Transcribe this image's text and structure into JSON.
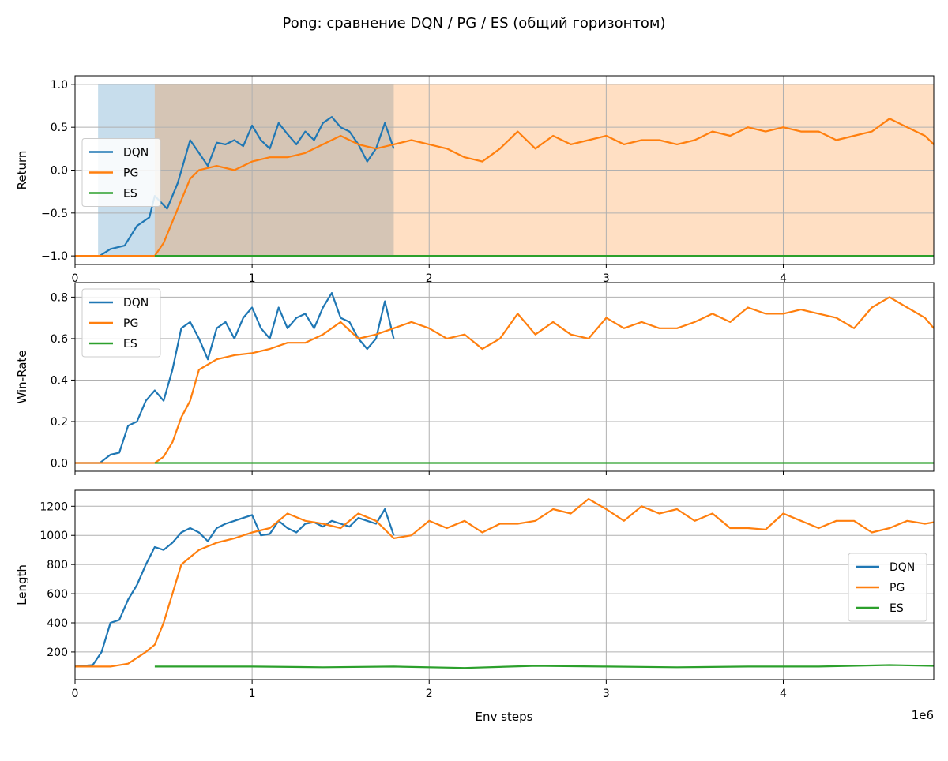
{
  "figure": {
    "title": "Pong: сравнение DQN / PG / ES (общий горизонтом)",
    "xlabel": "Env steps",
    "x_offset_label": "1e6"
  },
  "colors": {
    "DQN": "#1f77b4",
    "PG": "#ff7f0e",
    "ES": "#2ca02c",
    "grid": "#b0b0b0"
  },
  "legend_labels": [
    "DQN",
    "PG",
    "ES"
  ],
  "chart_data": [
    {
      "type": "line",
      "ylabel": "Return",
      "xlim": [
        0,
        4.85
      ],
      "ylim": [
        -1.1,
        1.1
      ],
      "yticks": [
        -1.0,
        -0.5,
        0.0,
        0.5,
        1.0
      ],
      "ytick_labels": [
        "−1.0",
        "−0.5",
        "0.0",
        "0.5",
        "1.0"
      ],
      "xticks": [
        0,
        1,
        2,
        3,
        4
      ],
      "xtick_labels": [
        "0",
        "1",
        "2",
        "3",
        "4"
      ],
      "grid": true,
      "legend_position": "center-left",
      "shaded_spans": [
        {
          "series": "DQN",
          "x": [
            0.13,
            0.45
          ],
          "y": [
            -1.0,
            1.0
          ]
        },
        {
          "series": "DQN",
          "x": [
            0.45,
            1.8
          ],
          "y": [
            -1.0,
            1.0
          ]
        },
        {
          "series": "PG",
          "x": [
            0.45,
            4.85
          ],
          "y": [
            -1.0,
            1.0
          ]
        }
      ],
      "series": [
        {
          "name": "DQN",
          "x": [
            0,
            0.14,
            0.2,
            0.28,
            0.35,
            0.42,
            0.45,
            0.52,
            0.58,
            0.65,
            0.7,
            0.75,
            0.8,
            0.85,
            0.9,
            0.95,
            1.0,
            1.05,
            1.1,
            1.15,
            1.2,
            1.25,
            1.3,
            1.35,
            1.4,
            1.45,
            1.5,
            1.55,
            1.6,
            1.65,
            1.7,
            1.75,
            1.8
          ],
          "y": [
            -1.0,
            -1.0,
            -0.92,
            -0.88,
            -0.65,
            -0.55,
            -0.3,
            -0.45,
            -0.15,
            0.35,
            0.2,
            0.05,
            0.32,
            0.3,
            0.35,
            0.28,
            0.52,
            0.35,
            0.25,
            0.55,
            0.42,
            0.3,
            0.45,
            0.35,
            0.55,
            0.62,
            0.5,
            0.45,
            0.3,
            0.1,
            0.25,
            0.55,
            0.25
          ]
        },
        {
          "name": "PG",
          "x": [
            0,
            0.45,
            0.5,
            0.55,
            0.6,
            0.65,
            0.7,
            0.8,
            0.9,
            1.0,
            1.1,
            1.2,
            1.3,
            1.4,
            1.5,
            1.6,
            1.7,
            1.8,
            1.9,
            2.0,
            2.1,
            2.2,
            2.3,
            2.4,
            2.5,
            2.6,
            2.7,
            2.8,
            2.9,
            3.0,
            3.1,
            3.2,
            3.3,
            3.4,
            3.5,
            3.6,
            3.7,
            3.8,
            3.9,
            4.0,
            4.1,
            4.2,
            4.3,
            4.4,
            4.5,
            4.6,
            4.7,
            4.8,
            4.85
          ],
          "y": [
            -1.0,
            -1.0,
            -0.85,
            -0.6,
            -0.35,
            -0.1,
            0.0,
            0.05,
            0.0,
            0.1,
            0.15,
            0.15,
            0.2,
            0.3,
            0.4,
            0.3,
            0.25,
            0.3,
            0.35,
            0.3,
            0.25,
            0.15,
            0.1,
            0.25,
            0.45,
            0.25,
            0.4,
            0.3,
            0.35,
            0.4,
            0.3,
            0.35,
            0.35,
            0.3,
            0.35,
            0.45,
            0.4,
            0.5,
            0.45,
            0.5,
            0.45,
            0.45,
            0.35,
            0.4,
            0.45,
            0.6,
            0.5,
            0.4,
            0.3
          ]
        },
        {
          "name": "ES",
          "x": [
            0.45,
            4.85
          ],
          "y": [
            -1.0,
            -1.0
          ]
        }
      ]
    },
    {
      "type": "line",
      "ylabel": "Win-Rate",
      "xlim": [
        0,
        4.85
      ],
      "ylim": [
        -0.04,
        0.87
      ],
      "yticks": [
        0.0,
        0.2,
        0.4,
        0.6,
        0.8
      ],
      "ytick_labels": [
        "0.0",
        "0.2",
        "0.4",
        "0.6",
        "0.8"
      ],
      "xticks": [
        0,
        1,
        2,
        3,
        4
      ],
      "xtick_labels": [
        "",
        "",
        "",
        "",
        ""
      ],
      "grid": true,
      "legend_position": "upper-left",
      "series": [
        {
          "name": "DQN",
          "x": [
            0,
            0.14,
            0.2,
            0.25,
            0.3,
            0.35,
            0.4,
            0.45,
            0.5,
            0.55,
            0.6,
            0.65,
            0.7,
            0.75,
            0.8,
            0.85,
            0.9,
            0.95,
            1.0,
            1.05,
            1.1,
            1.15,
            1.2,
            1.25,
            1.3,
            1.35,
            1.4,
            1.45,
            1.5,
            1.55,
            1.6,
            1.65,
            1.7,
            1.75,
            1.8
          ],
          "y": [
            0.0,
            0.0,
            0.04,
            0.05,
            0.18,
            0.2,
            0.3,
            0.35,
            0.3,
            0.45,
            0.65,
            0.68,
            0.6,
            0.5,
            0.65,
            0.68,
            0.6,
            0.7,
            0.75,
            0.65,
            0.6,
            0.75,
            0.65,
            0.7,
            0.72,
            0.65,
            0.75,
            0.82,
            0.7,
            0.68,
            0.6,
            0.55,
            0.6,
            0.78,
            0.6
          ]
        },
        {
          "name": "PG",
          "x": [
            0,
            0.35,
            0.45,
            0.5,
            0.55,
            0.6,
            0.65,
            0.7,
            0.8,
            0.9,
            1.0,
            1.1,
            1.2,
            1.3,
            1.4,
            1.5,
            1.6,
            1.7,
            1.8,
            1.9,
            2.0,
            2.1,
            2.2,
            2.3,
            2.4,
            2.5,
            2.6,
            2.7,
            2.8,
            2.9,
            3.0,
            3.1,
            3.2,
            3.3,
            3.4,
            3.5,
            3.6,
            3.7,
            3.8,
            3.9,
            4.0,
            4.1,
            4.2,
            4.3,
            4.4,
            4.5,
            4.6,
            4.7,
            4.8,
            4.85
          ],
          "y": [
            0.0,
            0.0,
            0.0,
            0.03,
            0.1,
            0.22,
            0.3,
            0.45,
            0.5,
            0.52,
            0.53,
            0.55,
            0.58,
            0.58,
            0.62,
            0.68,
            0.6,
            0.62,
            0.65,
            0.68,
            0.65,
            0.6,
            0.62,
            0.55,
            0.6,
            0.72,
            0.62,
            0.68,
            0.62,
            0.6,
            0.7,
            0.65,
            0.68,
            0.65,
            0.65,
            0.68,
            0.72,
            0.68,
            0.75,
            0.72,
            0.72,
            0.74,
            0.72,
            0.7,
            0.65,
            0.75,
            0.8,
            0.75,
            0.7,
            0.65
          ]
        },
        {
          "name": "ES",
          "x": [
            0.45,
            4.85
          ],
          "y": [
            0.0,
            0.0
          ]
        }
      ]
    },
    {
      "type": "line",
      "ylabel": "Length",
      "xlim": [
        0,
        4.85
      ],
      "ylim": [
        10,
        1310
      ],
      "yticks": [
        200,
        400,
        600,
        800,
        1000,
        1200
      ],
      "ytick_labels": [
        "200",
        "400",
        "600",
        "800",
        "1000",
        "1200"
      ],
      "xticks": [
        0,
        1,
        2,
        3,
        4
      ],
      "xtick_labels": [
        "0",
        "1",
        "2",
        "3",
        "4"
      ],
      "grid": true,
      "legend_position": "center-right",
      "series": [
        {
          "name": "DQN",
          "x": [
            0,
            0.1,
            0.15,
            0.2,
            0.25,
            0.3,
            0.35,
            0.4,
            0.45,
            0.5,
            0.55,
            0.6,
            0.65,
            0.7,
            0.75,
            0.8,
            0.85,
            0.9,
            0.95,
            1.0,
            1.05,
            1.1,
            1.15,
            1.2,
            1.25,
            1.3,
            1.35,
            1.4,
            1.45,
            1.5,
            1.55,
            1.6,
            1.65,
            1.7,
            1.75,
            1.8
          ],
          "y": [
            100,
            110,
            200,
            400,
            420,
            560,
            660,
            800,
            920,
            900,
            950,
            1020,
            1050,
            1020,
            960,
            1050,
            1080,
            1100,
            1120,
            1140,
            1000,
            1010,
            1100,
            1050,
            1020,
            1080,
            1090,
            1060,
            1100,
            1080,
            1060,
            1120,
            1100,
            1080,
            1180,
            1000
          ]
        },
        {
          "name": "PG",
          "x": [
            0,
            0.2,
            0.3,
            0.4,
            0.45,
            0.5,
            0.55,
            0.6,
            0.65,
            0.7,
            0.8,
            0.9,
            1.0,
            1.1,
            1.15,
            1.2,
            1.3,
            1.4,
            1.5,
            1.6,
            1.7,
            1.8,
            1.9,
            2.0,
            2.1,
            2.2,
            2.3,
            2.4,
            2.5,
            2.6,
            2.7,
            2.8,
            2.9,
            3.0,
            3.1,
            3.2,
            3.3,
            3.4,
            3.5,
            3.6,
            3.7,
            3.8,
            3.9,
            4.0,
            4.1,
            4.2,
            4.3,
            4.4,
            4.5,
            4.6,
            4.7,
            4.8,
            4.85
          ],
          "y": [
            100,
            100,
            120,
            200,
            250,
            400,
            600,
            800,
            850,
            900,
            950,
            980,
            1020,
            1050,
            1100,
            1150,
            1100,
            1080,
            1050,
            1150,
            1100,
            980,
            1000,
            1100,
            1050,
            1100,
            1020,
            1080,
            1080,
            1100,
            1180,
            1150,
            1250,
            1180,
            1100,
            1200,
            1150,
            1180,
            1100,
            1150,
            1050,
            1050,
            1040,
            1150,
            1100,
            1050,
            1100,
            1100,
            1020,
            1050,
            1100,
            1080,
            1090
          ]
        },
        {
          "name": "ES",
          "x": [
            0.45,
            0.6,
            1.0,
            1.4,
            1.8,
            2.2,
            2.6,
            3.0,
            3.4,
            3.8,
            4.2,
            4.6,
            4.85
          ],
          "y": [
            100,
            100,
            100,
            95,
            100,
            90,
            105,
            100,
            95,
            100,
            100,
            110,
            105
          ]
        }
      ]
    }
  ]
}
